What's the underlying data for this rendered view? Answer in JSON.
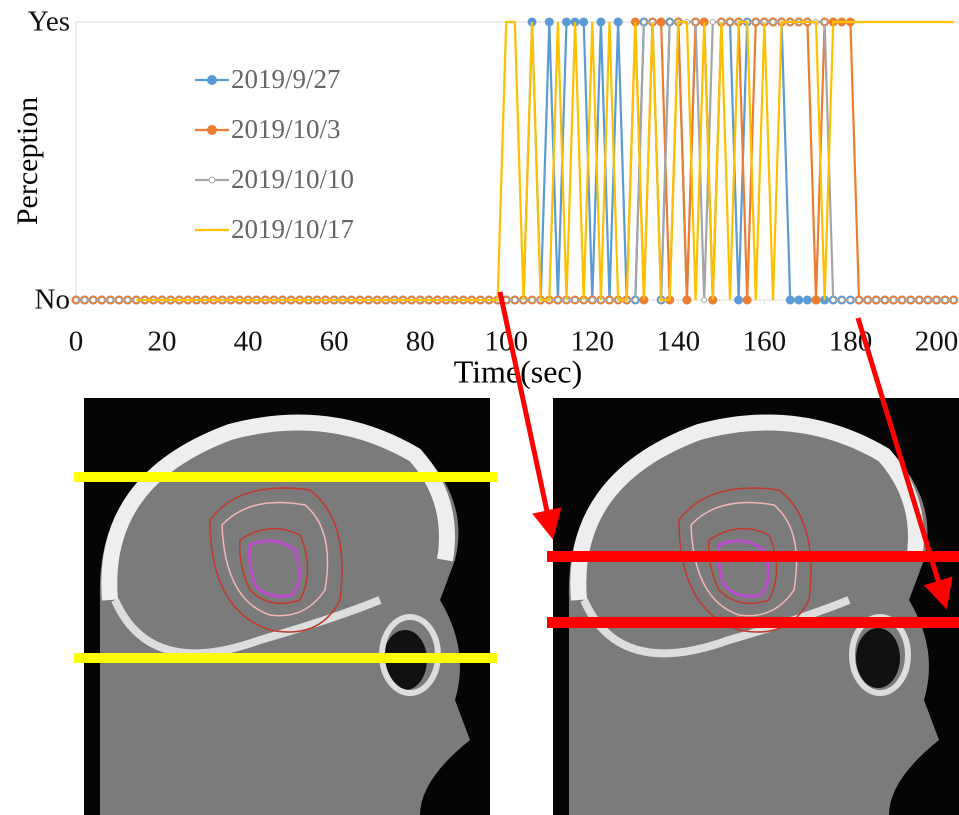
{
  "chart_data": {
    "type": "line",
    "x_label": "Time(sec)",
    "y_label": "Perception",
    "x": [
      0,
      2,
      4,
      6,
      8,
      10,
      12,
      14,
      16,
      18,
      20,
      22,
      24,
      26,
      28,
      30,
      32,
      34,
      36,
      38,
      40,
      42,
      44,
      46,
      48,
      50,
      52,
      54,
      56,
      58,
      60,
      62,
      64,
      66,
      68,
      70,
      72,
      74,
      76,
      78,
      80,
      82,
      84,
      86,
      88,
      90,
      92,
      94,
      96,
      98,
      100,
      102,
      104,
      106,
      108,
      110,
      112,
      114,
      116,
      118,
      120,
      122,
      124,
      126,
      128,
      130,
      132,
      134,
      136,
      138,
      140,
      142,
      144,
      146,
      148,
      150,
      152,
      154,
      156,
      158,
      160,
      162,
      164,
      166,
      168,
      170,
      172,
      174,
      176,
      178,
      180,
      182,
      184,
      186,
      188,
      190,
      192,
      194,
      196,
      198,
      200,
      202,
      204
    ],
    "xlim": [
      0,
      205
    ],
    "xticks": [
      0,
      20,
      40,
      60,
      80,
      100,
      120,
      140,
      160,
      180,
      200
    ],
    "ylim": [
      0,
      1
    ],
    "yticks": [
      {
        "value": 0,
        "label": "No"
      },
      {
        "value": 1,
        "label": "Yes"
      }
    ],
    "grid": true,
    "legend": "upper left",
    "series": [
      {
        "name": "2019/9/27",
        "color": "#5b9bd5",
        "marker": "filled",
        "values": [
          0,
          0,
          0,
          0,
          0,
          0,
          0,
          0,
          0,
          0,
          0,
          0,
          0,
          0,
          0,
          0,
          0,
          0,
          0,
          0,
          0,
          0,
          0,
          0,
          0,
          0,
          0,
          0,
          0,
          0,
          0,
          0,
          0,
          0,
          0,
          0,
          0,
          0,
          0,
          0,
          0,
          0,
          0,
          0,
          0,
          0,
          0,
          0,
          0,
          0,
          0,
          0,
          0,
          1,
          0,
          1,
          0,
          1,
          1,
          1,
          0,
          1,
          0,
          1,
          0,
          0,
          1,
          1,
          0,
          1,
          1,
          0,
          1,
          1,
          0,
          1,
          1,
          0,
          1,
          1,
          1,
          1,
          1,
          0,
          0,
          0,
          0,
          0,
          0,
          0,
          0,
          0,
          0,
          0,
          0,
          0,
          0,
          0,
          0,
          0,
          0,
          0,
          0
        ]
      },
      {
        "name": "2019/10/3",
        "color": "#ed7d31",
        "marker": "filled",
        "values": [
          0,
          0,
          0,
          0,
          0,
          0,
          0,
          0,
          0,
          0,
          0,
          0,
          0,
          0,
          0,
          0,
          0,
          0,
          0,
          0,
          0,
          0,
          0,
          0,
          0,
          0,
          0,
          0,
          0,
          0,
          0,
          0,
          0,
          0,
          0,
          0,
          0,
          0,
          0,
          0,
          0,
          0,
          0,
          0,
          0,
          0,
          0,
          0,
          0,
          0,
          0,
          0,
          0,
          0,
          0,
          0,
          0,
          0,
          0,
          0,
          0,
          0,
          0,
          0,
          0,
          1,
          0,
          1,
          1,
          0,
          1,
          0,
          1,
          1,
          0,
          1,
          1,
          1,
          0,
          1,
          1,
          1,
          1,
          1,
          1,
          1,
          0,
          1,
          1,
          1,
          1,
          0,
          0,
          0,
          0,
          0,
          0,
          0,
          0,
          0,
          0,
          0,
          0
        ]
      },
      {
        "name": "2019/10/10",
        "color": "#a5a5a5",
        "marker": "hollow",
        "values": [
          0,
          0,
          0,
          0,
          0,
          0,
          0,
          0,
          0,
          0,
          0,
          0,
          0,
          0,
          0,
          0,
          0,
          0,
          0,
          0,
          0,
          0,
          0,
          0,
          0,
          0,
          0,
          0,
          0,
          0,
          0,
          0,
          0,
          0,
          0,
          0,
          0,
          0,
          0,
          0,
          0,
          0,
          0,
          0,
          0,
          0,
          0,
          0,
          0,
          0,
          0,
          0,
          0,
          0,
          0,
          0,
          0,
          0,
          0,
          0,
          0,
          0,
          0,
          0,
          0,
          0,
          1,
          1,
          0,
          1,
          1,
          1,
          1,
          0,
          1,
          1,
          1,
          1,
          1,
          1,
          1,
          1,
          1,
          1,
          1,
          1,
          1,
          1,
          0,
          0,
          0,
          0,
          0,
          0,
          0,
          0,
          0,
          0,
          0,
          0,
          0,
          0,
          0
        ]
      },
      {
        "name": "2019/10/17",
        "color": "#ffc000",
        "marker": "none",
        "values": [
          null,
          null,
          null,
          null,
          null,
          null,
          null,
          0,
          0,
          0,
          0,
          0,
          0,
          0,
          0,
          0,
          0,
          0,
          0,
          0,
          0,
          0,
          0,
          0,
          0,
          0,
          0,
          0,
          0,
          0,
          0,
          0,
          0,
          0,
          0,
          0,
          0,
          0,
          0,
          0,
          0,
          0,
          0,
          0,
          0,
          0,
          0,
          0,
          0,
          0,
          1,
          1,
          0,
          1,
          0,
          0,
          1,
          0,
          1,
          0,
          1,
          0,
          1,
          0,
          0,
          1,
          0,
          1,
          0,
          0,
          1,
          1,
          0,
          1,
          0,
          1,
          0,
          1,
          1,
          0,
          1,
          0,
          1,
          1,
          1,
          1,
          1,
          0,
          1,
          1,
          1,
          1,
          1,
          1,
          1,
          1,
          1,
          1,
          1,
          1,
          1,
          1,
          1
        ]
      }
    ]
  }
}
